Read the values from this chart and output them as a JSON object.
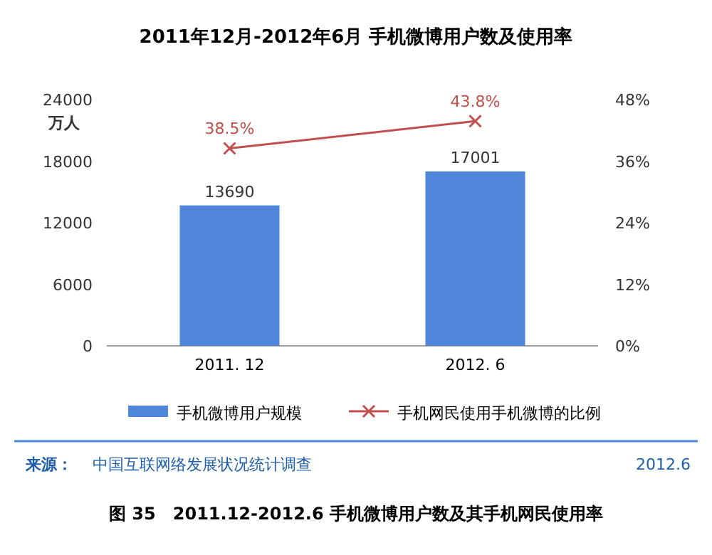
{
  "chart_data": {
    "type": "bar",
    "title": "2011年12月-2012年6月 手机微博用户数及使用率",
    "ylabel": "万人",
    "categories": [
      "2011. 12",
      "2012. 6"
    ],
    "series": [
      {
        "name": "手机微博用户规模",
        "color": "#4f86d9",
        "values": [
          13690,
          17001
        ],
        "value_labels": [
          "13690",
          "17001"
        ]
      },
      {
        "name": "手机网民使用手机微博的比例",
        "type": "line",
        "axis": "y2",
        "color": "#c0504d",
        "marker": "cross",
        "values": [
          38.5,
          43.8
        ],
        "value_labels": [
          "38.5%",
          "43.8%"
        ]
      }
    ],
    "ylim": [
      0,
      24000
    ],
    "yticks": [
      0,
      6000,
      12000,
      18000,
      24000
    ],
    "y2lim": [
      0,
      48
    ],
    "y2ticks": [
      {
        "value": 0,
        "label": "0%"
      },
      {
        "value": 12,
        "label": "12%"
      },
      {
        "value": 24,
        "label": "24%"
      },
      {
        "value": 36,
        "label": "36%"
      },
      {
        "value": 48,
        "label": "48%"
      }
    ],
    "grid": false,
    "legend": "bottom",
    "annotations": [
      "来源：",
      "中国互联网络发展状况统计调查",
      "2012.6",
      "图 35　2011.12-2012.6 手机微博用户数及其手机网民使用率"
    ]
  }
}
